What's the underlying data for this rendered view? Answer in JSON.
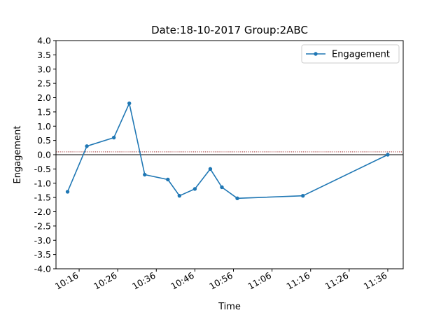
{
  "chart_data": {
    "type": "line",
    "title": "Date:18-10-2017 Group:2ABC",
    "xlabel": "Time",
    "ylabel": "Engagement",
    "xlim": [
      "10:10",
      "11:40"
    ],
    "ylim": [
      -4.0,
      4.0
    ],
    "yticks": [
      "-4.0",
      "-3.5",
      "-3.0",
      "-2.5",
      "-2.0",
      "-1.5",
      "-1.0",
      "-0.5",
      "0.0",
      "0.5",
      "1.0",
      "1.5",
      "2.0",
      "2.5",
      "3.0",
      "3.5",
      "4.0"
    ],
    "xticks": [
      "10:16",
      "10:26",
      "10:36",
      "10:46",
      "10:56",
      "11:06",
      "11:16",
      "11:26",
      "11:36"
    ],
    "reference_lines": [
      {
        "y": 0.0,
        "color": "#000000",
        "style": "solid"
      },
      {
        "y": 0.1,
        "color": "#8b0000",
        "style": "dotted"
      }
    ],
    "legend": {
      "position": "top-right",
      "entries": [
        "Engagement"
      ]
    },
    "grid": false,
    "series": [
      {
        "name": "Engagement",
        "color": "#1f77b4",
        "x": [
          "10:13",
          "10:18",
          "10:25",
          "10:29",
          "10:33",
          "10:39",
          "10:42",
          "10:46",
          "10:50",
          "10:53",
          "10:57",
          "11:14",
          "11:36"
        ],
        "y": [
          -1.3,
          0.3,
          0.6,
          1.8,
          -0.7,
          -0.87,
          -1.44,
          -1.2,
          -0.5,
          -1.14,
          -1.53,
          -1.44,
          0.0
        ]
      }
    ]
  }
}
